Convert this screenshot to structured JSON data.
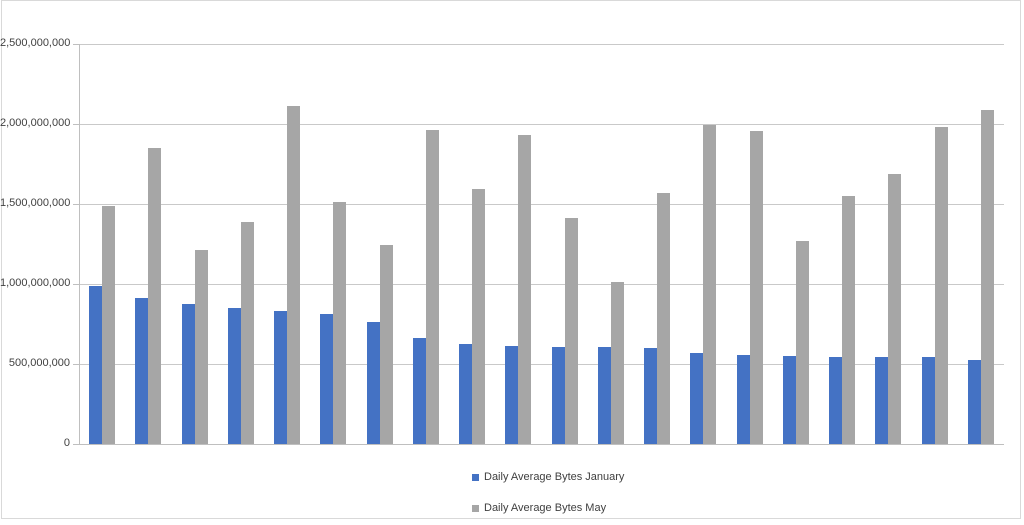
{
  "chart_data": {
    "type": "bar",
    "title": "",
    "num_categories": 20,
    "x_tick_labels": [],
    "series": [
      {
        "name": "Daily Average Bytes January",
        "color": "#4472C4",
        "values": [
          990000000,
          915000000,
          878000000,
          852000000,
          831000000,
          815000000,
          760000000,
          660000000,
          627000000,
          612000000,
          608000000,
          604000000,
          597000000,
          569000000,
          555000000,
          553000000,
          545000000,
          543000000,
          541000000,
          525000000
        ]
      },
      {
        "name": "Daily Average Bytes May",
        "color": "#A6A6A6",
        "values": [
          1490000000,
          1850000000,
          1215000000,
          1390000000,
          2110000000,
          1510000000,
          1245000000,
          1960000000,
          1595000000,
          1930000000,
          1415000000,
          1015000000,
          1570000000,
          1995000000,
          1955000000,
          1270000000,
          1550000000,
          1685000000,
          1980000000,
          2090000000
        ]
      }
    ],
    "ylim": [
      0,
      2500000000
    ],
    "y_tick_interval": 500000000,
    "y_tick_labels": [
      "0",
      "500,000,000",
      "1,000,000,000",
      "1,500,000,000",
      "2,000,000,000",
      "2,500,000,000"
    ],
    "grid": true,
    "legend_position": "bottom-center",
    "legend_orientation": "vertical"
  },
  "colors": {
    "background": "#FFFFFF",
    "gridline": "#C9C9C9",
    "axis": "#BFBFBF",
    "text": "#404040",
    "frame_border": "#D9D9D9"
  }
}
